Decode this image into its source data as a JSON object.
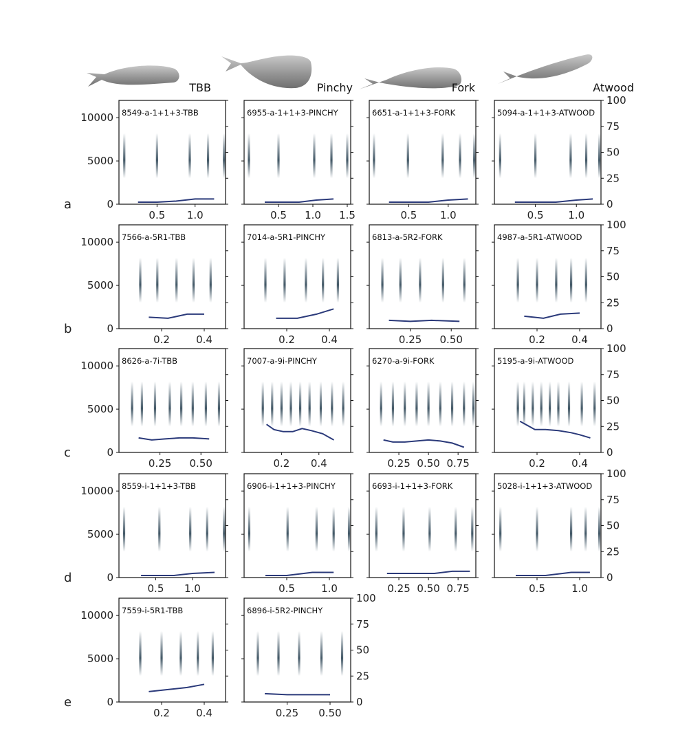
{
  "header": {
    "whales": [
      "TBB",
      "Pinchy",
      "Fork",
      "Atwood"
    ]
  },
  "rows": [
    "a",
    "b",
    "c",
    "d",
    "e"
  ],
  "colors": {
    "line": "#2b3a7a",
    "click": "#2e4656",
    "axis": "#111111",
    "whale_body": "#9a9a9a"
  },
  "axes": {
    "left_y_ticks": [
      "0",
      "5000",
      "10000"
    ],
    "right_y_ticks": [
      "0",
      "25",
      "50",
      "75",
      "100"
    ],
    "left_ylim": [
      0,
      12000
    ],
    "right_ylim": [
      0,
      100
    ]
  },
  "chart_data": [
    {
      "type": "line",
      "row": "a",
      "title": "8549-a-1+1+3-TBB",
      "xlim": [
        0,
        1.4
      ],
      "xticks": [
        "0.5",
        "1.0"
      ],
      "clicks": [
        0.07,
        0.5,
        0.93,
        1.17,
        1.38
      ],
      "line": {
        "x": [
          0.25,
          0.5,
          0.75,
          1.0,
          1.25
        ],
        "y": [
          2,
          2,
          3,
          5,
          5
        ]
      }
    },
    {
      "type": "line",
      "row": "a",
      "title": "6955-a-1+1+3-PINCHY",
      "xlim": [
        0,
        1.55
      ],
      "xticks": [
        "0.5",
        "1.0",
        "1.5"
      ],
      "clicks": [
        0.07,
        0.5,
        1.02,
        1.27,
        1.5
      ],
      "line": {
        "x": [
          0.3,
          0.55,
          0.8,
          1.05,
          1.3
        ],
        "y": [
          2,
          2,
          2,
          4,
          5
        ]
      }
    },
    {
      "type": "line",
      "row": "a",
      "title": "6651-a-1+1+3-FORK",
      "xlim": [
        0,
        1.35
      ],
      "xticks": [
        "0.5",
        "1.0"
      ],
      "clicks": [
        0.06,
        0.49,
        0.93,
        1.15,
        1.33
      ],
      "line": {
        "x": [
          0.25,
          0.5,
          0.75,
          1.0,
          1.25
        ],
        "y": [
          2,
          2,
          2,
          4,
          5
        ]
      }
    },
    {
      "type": "line",
      "row": "a",
      "title": "5094-a-1+1+3-ATWOOD",
      "xlim": [
        0,
        1.3
      ],
      "xticks": [
        "0.5",
        "1.0"
      ],
      "clicks": [
        0.07,
        0.5,
        0.93,
        1.12,
        1.28
      ],
      "line": {
        "x": [
          0.25,
          0.5,
          0.75,
          1.0,
          1.2
        ],
        "y": [
          2,
          2,
          2,
          4,
          5
        ]
      }
    },
    {
      "type": "line",
      "row": "b",
      "title": "7566-a-5R1-TBB",
      "xlim": [
        0,
        0.5
      ],
      "xticks": [
        "0.2",
        "0.4"
      ],
      "clicks": [
        0.1,
        0.18,
        0.27,
        0.35,
        0.43
      ],
      "line": {
        "x": [
          0.14,
          0.23,
          0.32,
          0.4
        ],
        "y": [
          11,
          10,
          14,
          14
        ]
      }
    },
    {
      "type": "line",
      "row": "b",
      "title": "7014-a-5R1-PINCHY",
      "xlim": [
        0,
        0.5
      ],
      "xticks": [
        "0.2",
        "0.4"
      ],
      "clicks": [
        0.1,
        0.19,
        0.29,
        0.37,
        0.44
      ],
      "line": {
        "x": [
          0.15,
          0.25,
          0.34,
          0.42
        ],
        "y": [
          10,
          10,
          14,
          19
        ]
      }
    },
    {
      "type": "line",
      "row": "b",
      "title": "6813-a-5R2-FORK",
      "xlim": [
        0,
        0.65
      ],
      "xticks": [
        "0.25",
        "0.50"
      ],
      "clicks": [
        0.08,
        0.19,
        0.31,
        0.45,
        0.58
      ],
      "line": {
        "x": [
          0.12,
          0.25,
          0.38,
          0.55
        ],
        "y": [
          8,
          7,
          8,
          7
        ]
      }
    },
    {
      "type": "line",
      "row": "b",
      "title": "4987-a-5R1-ATWOOD",
      "xlim": [
        0,
        0.5
      ],
      "xticks": [
        "0.2",
        "0.4"
      ],
      "clicks": [
        0.11,
        0.2,
        0.29,
        0.36,
        0.43
      ],
      "line": {
        "x": [
          0.14,
          0.23,
          0.31,
          0.4
        ],
        "y": [
          12,
          10,
          14,
          15
        ]
      }
    },
    {
      "type": "line",
      "row": "c",
      "title": "8626-a-7i-TBB",
      "xlim": [
        0,
        0.65
      ],
      "xticks": [
        "0.25",
        "0.50"
      ],
      "clicks": [
        0.08,
        0.14,
        0.22,
        0.31,
        0.38,
        0.45,
        0.53,
        0.61
      ],
      "line": {
        "x": [
          0.12,
          0.2,
          0.28,
          0.37,
          0.45,
          0.55
        ],
        "y": [
          14,
          12,
          13,
          14,
          14,
          13
        ]
      }
    },
    {
      "type": "line",
      "row": "c",
      "title": "7007-a-9i-PINCHY",
      "xlim": [
        0,
        0.57
      ],
      "xticks": [
        "0.2",
        "0.4"
      ],
      "clicks": [
        0.1,
        0.15,
        0.2,
        0.25,
        0.3,
        0.35,
        0.41,
        0.47,
        0.53
      ],
      "line": {
        "x": [
          0.12,
          0.16,
          0.21,
          0.26,
          0.31,
          0.36,
          0.42,
          0.48
        ],
        "y": [
          27,
          22,
          20,
          20,
          23,
          21,
          18,
          12
        ]
      }
    },
    {
      "type": "line",
      "row": "c",
      "title": "6270-a-9i-FORK",
      "xlim": [
        0,
        0.9
      ],
      "xticks": [
        "0.25",
        "0.50",
        "0.75"
      ],
      "clicks": [
        0.1,
        0.2,
        0.3,
        0.4,
        0.5,
        0.6,
        0.7,
        0.8,
        0.88
      ],
      "line": {
        "x": [
          0.12,
          0.2,
          0.3,
          0.4,
          0.5,
          0.6,
          0.7,
          0.8
        ],
        "y": [
          12,
          10,
          10,
          11,
          12,
          11,
          9,
          5
        ]
      }
    },
    {
      "type": "line",
      "row": "c",
      "title": "5195-a-9i-ATWOOD",
      "xlim": [
        0,
        0.5
      ],
      "xticks": [
        "0.2",
        "0.4"
      ],
      "clicks": [
        0.11,
        0.14,
        0.18,
        0.22,
        0.26,
        0.3,
        0.35,
        0.41,
        0.47
      ],
      "line": {
        "x": [
          0.12,
          0.19,
          0.24,
          0.3,
          0.36,
          0.4,
          0.45
        ],
        "y": [
          30,
          22,
          22,
          21,
          19,
          17,
          14
        ]
      }
    },
    {
      "type": "line",
      "row": "d",
      "title": "8559-i-1+1+3-TBB",
      "xlim": [
        0,
        1.45
      ],
      "xticks": [
        "0.5",
        "1.0"
      ],
      "clicks": [
        0.07,
        0.55,
        0.97,
        1.2,
        1.43
      ],
      "line": {
        "x": [
          0.3,
          0.55,
          0.75,
          1.0,
          1.3
        ],
        "y": [
          2,
          2,
          2,
          4,
          5
        ]
      }
    },
    {
      "type": "line",
      "row": "d",
      "title": "6906-i-1+1+3-PINCHY",
      "xlim": [
        0,
        1.25
      ],
      "xticks": [
        "0.5",
        "1.0"
      ],
      "clicks": [
        0.06,
        0.51,
        0.85,
        1.05,
        1.23
      ],
      "line": {
        "x": [
          0.25,
          0.5,
          0.8,
          1.05
        ],
        "y": [
          2,
          2,
          5,
          5
        ]
      }
    },
    {
      "type": "line",
      "row": "d",
      "title": "6693-i-1+1+3-FORK",
      "xlim": [
        0,
        0.9
      ],
      "xticks": [
        "0.25",
        "0.50",
        "0.75"
      ],
      "clicks": [
        0.06,
        0.29,
        0.51,
        0.73,
        0.87
      ],
      "line": {
        "x": [
          0.15,
          0.35,
          0.55,
          0.7,
          0.85
        ],
        "y": [
          4,
          4,
          4,
          6,
          6
        ]
      }
    },
    {
      "type": "line",
      "row": "d",
      "title": "5028-i-1+1+3-ATWOOD",
      "xlim": [
        0,
        1.25
      ],
      "xticks": [
        "0.5",
        "1.0"
      ],
      "clicks": [
        0.07,
        0.5,
        0.9,
        1.07,
        1.23
      ],
      "line": {
        "x": [
          0.25,
          0.6,
          0.9,
          1.12
        ],
        "y": [
          2,
          2,
          5,
          5
        ]
      }
    },
    {
      "type": "line",
      "row": "e",
      "title": "7559-i-5R1-TBB",
      "xlim": [
        0,
        0.5
      ],
      "xticks": [
        "0.2",
        "0.4"
      ],
      "clicks": [
        0.1,
        0.2,
        0.29,
        0.37,
        0.44
      ],
      "line": {
        "x": [
          0.14,
          0.23,
          0.32,
          0.4
        ],
        "y": [
          10,
          12,
          14,
          17
        ]
      }
    },
    {
      "type": "line",
      "row": "e",
      "title": "6896-i-5R2-PINCHY",
      "xlim": [
        0,
        0.62
      ],
      "xticks": [
        "0.25",
        "0.50"
      ],
      "clicks": [
        0.08,
        0.2,
        0.32,
        0.45,
        0.57
      ],
      "line": {
        "x": [
          0.12,
          0.25,
          0.38,
          0.5
        ],
        "y": [
          8,
          7,
          7,
          7
        ]
      }
    }
  ]
}
